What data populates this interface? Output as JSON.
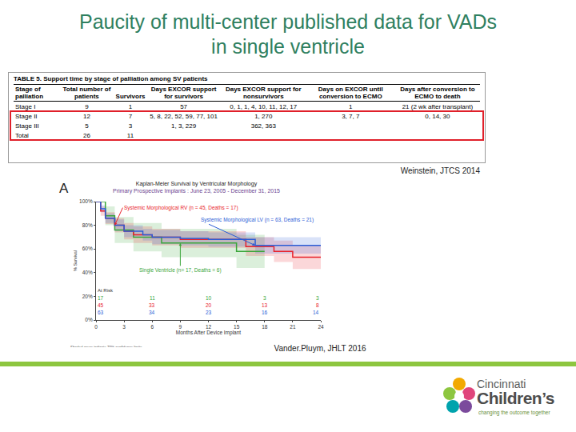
{
  "slide": {
    "title_lines": [
      "Paucity of multi-center published data for VADs",
      "in single ventricle"
    ],
    "table": {
      "caption": "TABLE 5. Support time by stage of palliation among SV patients",
      "headers": [
        "Stage of palliation",
        "Total number of patients",
        "Survivors",
        "Days EXCOR support for survivors",
        "Days EXCOR support for nonsurvivors",
        "Days on EXCOR until conversion to ECMO",
        "Days after conversion to ECMO to death"
      ],
      "rows": [
        [
          "Stage I",
          9,
          1,
          57,
          "0, 1, 1, 4, 10, 11, 12, 17",
          1,
          "21 (2 wk after transplant)"
        ],
        [
          "Stage II",
          12,
          7,
          "5, 8, 22, 52, 59, 77, 101",
          "1, 270",
          "3, 7, 7",
          "0, 14, 30"
        ],
        [
          "Stage III",
          5,
          3,
          "1, 3, 229",
          "362, 363",
          null,
          null
        ],
        [
          "Total",
          26,
          11,
          null,
          null,
          null,
          null
        ]
      ]
    },
    "citations": [
      "Weinstein, JTCS 2014",
      "Vander.Pluym, JHLT 2016"
    ],
    "logo": {
      "name_lines": [
        "Cincinnati",
        "Children’s"
      ],
      "tagline": "changing the outcome together"
    }
  },
  "chart_data": {
    "type": "line",
    "panel_label": "A",
    "title": "Kaplan-Meier Survival by Ventricular Morphology",
    "subtitle": "Primary Prospective Implants : June 23, 2005 - December 31, 2015",
    "x_label": "Months After Device Implant",
    "y_label": "% Survival",
    "footnote": "Shaded areas indicate 70% confidence limits",
    "line_style": "step",
    "xlim": [
      0,
      24
    ],
    "xticks": [
      0,
      3,
      6,
      9,
      12,
      15,
      18,
      21,
      24
    ],
    "ylim": [
      0,
      100
    ],
    "yticks": [
      {
        "value": 0,
        "label": "0%"
      },
      {
        "value": 20,
        "label": "20%"
      },
      {
        "value": 40,
        "label": "40%"
      },
      {
        "value": 60,
        "label": "60%"
      },
      {
        "value": 80,
        "label": "80%"
      },
      {
        "value": 100,
        "label": "100%"
      }
    ],
    "grid": false,
    "at_risk": {
      "label": "At Risk",
      "x": [
        0,
        6,
        12,
        18,
        24
      ]
    },
    "series": [
      {
        "name": "Single Ventricle (n= 17, Deaths = 6)",
        "color": "#3aa63a",
        "x": [
          0,
          1,
          2,
          4,
          7,
          9,
          15,
          18
        ],
        "values": [
          100,
          88,
          76,
          70,
          65,
          65,
          58,
          58
        ],
        "ci_lower": [
          100,
          80,
          65,
          58,
          53,
          53,
          44,
          44
        ],
        "ci_upper": [
          100,
          96,
          87,
          82,
          77,
          77,
          72,
          72
        ],
        "at_risk": [
          17,
          11,
          10,
          3,
          3
        ]
      },
      {
        "name": "Systemic Morphological RV (n = 45, Deaths = 17)",
        "color": "#e8212b",
        "x": [
          0,
          0.5,
          1,
          2,
          3,
          4,
          6,
          9,
          12,
          15,
          16,
          19,
          21,
          24
        ],
        "values": [
          100,
          92,
          86,
          80,
          75,
          72,
          70,
          68,
          68,
          68,
          62,
          58,
          53,
          53
        ],
        "ci_lower": [
          100,
          88,
          81,
          74,
          68,
          65,
          63,
          61,
          61,
          61,
          54,
          49,
          43,
          43
        ],
        "ci_upper": [
          100,
          96,
          91,
          86,
          82,
          79,
          77,
          75,
          75,
          75,
          70,
          67,
          63,
          63
        ],
        "at_risk": [
          45,
          33,
          20,
          13,
          8
        ]
      },
      {
        "name": "Systemic Morphological LV (n = 63, Deaths = 21)",
        "color": "#2a5cd6",
        "x": [
          0,
          0.5,
          1,
          2,
          3,
          5,
          6,
          9,
          12,
          15,
          17,
          24
        ],
        "values": [
          100,
          94,
          86,
          80,
          75,
          72,
          70,
          69,
          68,
          68,
          63,
          63
        ],
        "ci_lower": [
          100,
          91,
          82,
          75,
          70,
          67,
          64,
          63,
          62,
          62,
          56,
          56
        ],
        "ci_upper": [
          100,
          97,
          90,
          85,
          80,
          77,
          76,
          75,
          74,
          74,
          70,
          70
        ],
        "at_risk": [
          63,
          34,
          23,
          16,
          14
        ]
      }
    ]
  }
}
